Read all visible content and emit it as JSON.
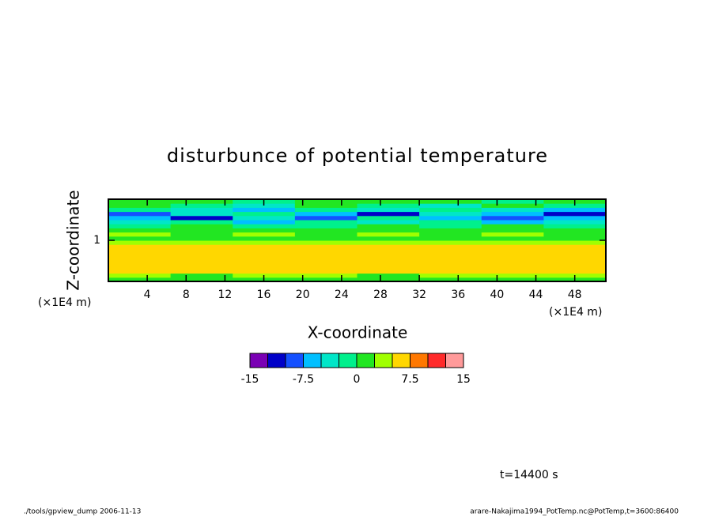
{
  "chart_data": {
    "type": "contour",
    "title": "disturbunce of potential temperature",
    "x_label": "X-coordinate",
    "y_label": "Z-coordinate",
    "x_unit": "(×1E4 m)",
    "y_unit": "(×1E4 m)",
    "xlim": [
      0,
      51.2
    ],
    "ylim": [
      0,
      2
    ],
    "xticks": [
      4,
      8,
      12,
      16,
      20,
      24,
      28,
      32,
      36,
      40,
      44,
      48
    ],
    "yticks": [
      1
    ],
    "x": [
      3.2,
      9.6,
      16,
      22.4,
      28.8,
      35.2,
      41.6,
      48
    ],
    "y": [
      0.05,
      0.15,
      0.25,
      0.35,
      0.45,
      0.55,
      0.65,
      0.75,
      0.85,
      0.95,
      1.05,
      1.15,
      1.25,
      1.35,
      1.45,
      1.55,
      1.65,
      1.75,
      1.85,
      1.95
    ],
    "z": [
      [
        1,
        1,
        1,
        1,
        1,
        1,
        1,
        1
      ],
      [
        3.5,
        1,
        3.5,
        3.5,
        1,
        3.5,
        3.5,
        3.5
      ],
      [
        6,
        6,
        6,
        6,
        6,
        6,
        6,
        6
      ],
      [
        6,
        6,
        6,
        6,
        6,
        6,
        6,
        6
      ],
      [
        6,
        6,
        6,
        6,
        6,
        6,
        6,
        6
      ],
      [
        6,
        6,
        6,
        6,
        6,
        6,
        6,
        6
      ],
      [
        6,
        6,
        6,
        6,
        6,
        6,
        6,
        6
      ],
      [
        6,
        6,
        6,
        6,
        6,
        6,
        6,
        6
      ],
      [
        6,
        6,
        6,
        6,
        6,
        6,
        6,
        6
      ],
      [
        3.5,
        3.5,
        3.5,
        3.5,
        3.5,
        3.5,
        3.5,
        3.5
      ],
      [
        1,
        1,
        1,
        1,
        1,
        1,
        1,
        1
      ],
      [
        3.5,
        1,
        3.5,
        1,
        3.5,
        1,
        3.5,
        1
      ],
      [
        1,
        1,
        1,
        1,
        1,
        1,
        1,
        1
      ],
      [
        -1,
        1,
        -1,
        -1,
        1,
        -1,
        1,
        -1
      ],
      [
        -4,
        -1,
        -6,
        -1,
        -4,
        -1,
        -6,
        -4
      ],
      [
        -6,
        -11,
        -4,
        -9,
        -1,
        -6,
        -9,
        -6
      ],
      [
        -9,
        -4,
        -1,
        -6,
        -11,
        -4,
        -6,
        -11
      ],
      [
        -1,
        -4,
        -6,
        -1,
        -4,
        -1,
        -4,
        -6
      ],
      [
        1,
        -1,
        -4,
        1,
        -1,
        -4,
        1,
        -1
      ],
      [
        1,
        1,
        -1,
        1,
        1,
        1,
        -1,
        1
      ]
    ],
    "levels": [
      -15,
      -12.5,
      -10,
      -7.5,
      -5,
      -2.5,
      0,
      2.5,
      5,
      7.5,
      10,
      12.5,
      15
    ],
    "colors": [
      "#7a00b4",
      "#0000c8",
      "#1450ff",
      "#00bfff",
      "#00e6c8",
      "#00f08c",
      "#22e622",
      "#a0ff00",
      "#ffd700",
      "#ff7800",
      "#ff2a2a",
      "#ff9a9a"
    ],
    "colorbar_ticks": [
      -15,
      -7.5,
      0,
      7.5,
      15
    ],
    "annotation": "t=14400 s",
    "footer_left": "./tools/gpview_dump  2006-11-13",
    "footer_right": "arare-Nakajima1994_PotTemp.nc@PotTemp,t=3600:86400"
  }
}
